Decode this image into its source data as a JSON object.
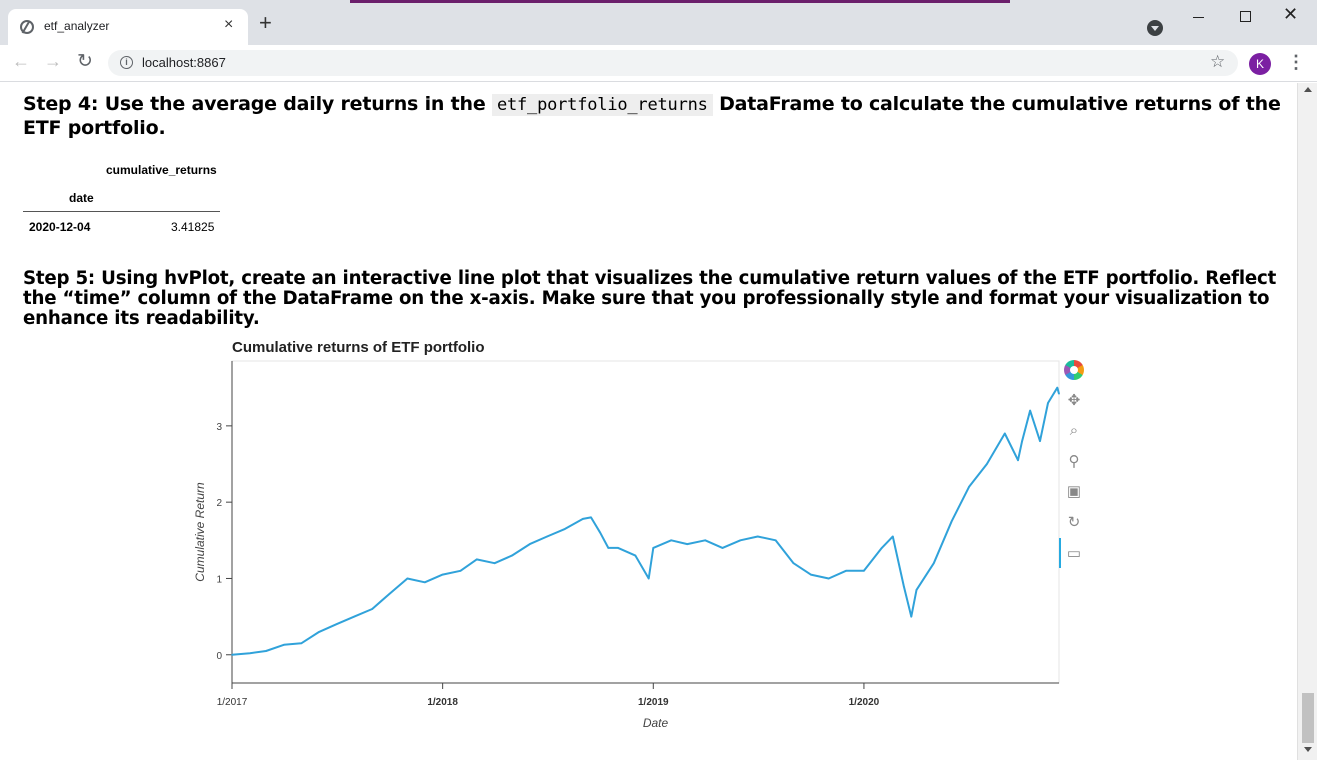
{
  "browser": {
    "tab_title": "etf_analyzer",
    "tab_close": "×",
    "new_tab": "+",
    "url": "localhost:8867",
    "avatar_letter": "K",
    "nav_back": "←",
    "nav_forward": "→",
    "reload": "↻",
    "star": "☆",
    "menu": "⋮",
    "info": "i",
    "window_close": "✕"
  },
  "notebook": {
    "step4": {
      "prefix": "Step 4: Use the average daily returns in the ",
      "code": "etf_portfolio_returns",
      "suffix": " DataFrame to calculate the cumulative returns of the ETF portfolio."
    },
    "dataframe": {
      "column": "cumulative_returns",
      "index_name": "date",
      "rows": [
        {
          "index": "2020-12-04",
          "value": "3.41825"
        }
      ]
    },
    "step5": "Step 5: Using hvPlot, create an interactive line plot that visualizes the cumulative return values of the ETF portfolio. Reflect the “time” column of the DataFrame on the x-axis. Make sure that you professionally style and format your visualization to enhance its readability."
  },
  "chart_data": {
    "type": "line",
    "title": "Cumulative returns of ETF portfolio",
    "xlabel": "Date",
    "ylabel": "Cumulative Return",
    "x_ticks": [
      "1/2017",
      "1/2018",
      "1/2019",
      "1/2020"
    ],
    "y_ticks": [
      0,
      1,
      2,
      3
    ],
    "xlim": [
      "2017-01-01",
      "2020-12-04"
    ],
    "ylim": [
      -0.37,
      3.85
    ],
    "color": "#30a2da",
    "x": [
      "2017-01-01",
      "2017-02-01",
      "2017-03-01",
      "2017-04-01",
      "2017-05-01",
      "2017-06-01",
      "2017-07-01",
      "2017-08-01",
      "2017-09-01",
      "2017-10-01",
      "2017-11-01",
      "2017-12-01",
      "2018-01-01",
      "2018-02-01",
      "2018-03-01",
      "2018-04-01",
      "2018-05-01",
      "2018-06-01",
      "2018-07-01",
      "2018-08-01",
      "2018-09-01",
      "2018-09-15",
      "2018-10-01",
      "2018-10-15",
      "2018-11-01",
      "2018-12-01",
      "2018-12-24",
      "2019-01-01",
      "2019-02-01",
      "2019-03-01",
      "2019-04-01",
      "2019-05-01",
      "2019-06-01",
      "2019-07-01",
      "2019-08-01",
      "2019-09-01",
      "2019-10-01",
      "2019-11-01",
      "2019-12-01",
      "2020-01-01",
      "2020-02-01",
      "2020-02-20",
      "2020-03-10",
      "2020-03-23",
      "2020-04-01",
      "2020-05-01",
      "2020-06-01",
      "2020-07-01",
      "2020-08-01",
      "2020-09-01",
      "2020-09-24",
      "2020-10-01",
      "2020-10-15",
      "2020-11-01",
      "2020-11-15",
      "2020-12-01",
      "2020-12-04"
    ],
    "values": [
      0.0,
      0.02,
      0.05,
      0.13,
      0.15,
      0.3,
      0.4,
      0.5,
      0.6,
      0.8,
      1.0,
      0.95,
      1.05,
      1.1,
      1.25,
      1.2,
      1.3,
      1.45,
      1.55,
      1.65,
      1.78,
      1.8,
      1.6,
      1.4,
      1.4,
      1.3,
      1.0,
      1.4,
      1.5,
      1.45,
      1.5,
      1.4,
      1.5,
      1.55,
      1.5,
      1.2,
      1.05,
      1.0,
      1.1,
      1.1,
      1.4,
      1.55,
      0.9,
      0.5,
      0.85,
      1.2,
      1.75,
      2.2,
      2.5,
      2.9,
      2.55,
      2.8,
      3.2,
      2.8,
      3.3,
      3.5,
      3.42
    ]
  }
}
